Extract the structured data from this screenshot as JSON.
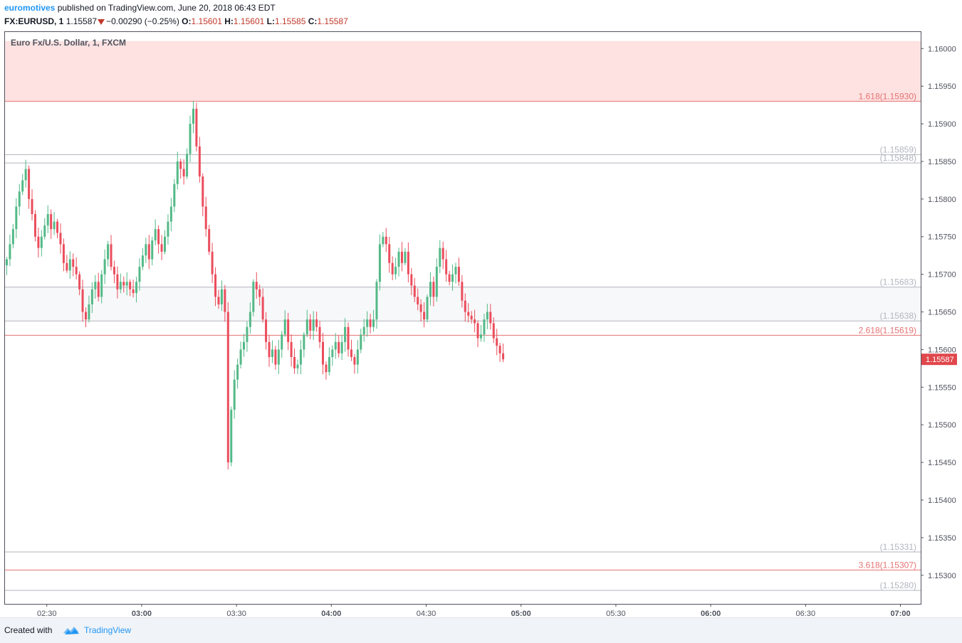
{
  "header": {
    "author": "euromotives",
    "published_text": "published on TradingView.com, June 20, 2018 06:43 EDT",
    "symbol": "FX:EURUSD, 1",
    "last": "1.15587",
    "change": "−0.00290 (−0.25%)",
    "o_label": "O:",
    "o_value": "1.15601",
    "h_label": "H:",
    "h_value": "1.15601",
    "l_label": "L:",
    "l_value": "1.15585",
    "c_label": "C:",
    "c_value": "1.15587"
  },
  "footer": {
    "created_with": "Created with",
    "brand": "TradingView"
  },
  "colors": {
    "up": "#53b987",
    "down": "#eb4d5c",
    "fib_red": "#e57373",
    "fib_gray": "#b2b5be",
    "zone_red": "#fde2e1",
    "zone_gray": "#f7f8f9",
    "axis": "#50535e",
    "last_price_bg": "#e0474c"
  },
  "chart_data": {
    "type": "candlestick",
    "legend_text": "Euro Fx/U.S. Dollar, 1, FXCM",
    "ylim": [
      1.15262,
      1.16022
    ],
    "y_ticks": [
      "1.16000",
      "1.15950",
      "1.15900",
      "1.15850",
      "1.15800",
      "1.15750",
      "1.15700",
      "1.15650",
      "1.15600",
      "1.15550",
      "1.15500",
      "1.15450",
      "1.15400",
      "1.15350",
      "1.15300"
    ],
    "x_ticks": [
      {
        "label": "02:30",
        "minute": 150,
        "bold": false
      },
      {
        "label": "03:00",
        "minute": 180,
        "bold": true
      },
      {
        "label": "03:30",
        "minute": 210,
        "bold": false
      },
      {
        "label": "04:00",
        "minute": 240,
        "bold": true
      },
      {
        "label": "04:30",
        "minute": 270,
        "bold": false
      },
      {
        "label": "05:00",
        "minute": 300,
        "bold": true
      },
      {
        "label": "05:30",
        "minute": 330,
        "bold": false
      },
      {
        "label": "06:00",
        "minute": 360,
        "bold": true
      },
      {
        "label": "06:30",
        "minute": 390,
        "bold": false
      },
      {
        "label": "07:00",
        "minute": 420,
        "bold": true
      }
    ],
    "start_minute": 137,
    "last_price": "1.15587",
    "zones": [
      {
        "from": 1.1593,
        "to": 1.1601,
        "color": "#fde2e1"
      },
      {
        "from": 1.15638,
        "to": 1.15683,
        "color": "#f7f8f9"
      }
    ],
    "levels": [
      {
        "price": 1.1593,
        "label": "1.618(1.15930)",
        "color": "#e57373"
      },
      {
        "price": 1.15859,
        "label": "(1.15859)",
        "color": "#b2b5be"
      },
      {
        "price": 1.15848,
        "label": "(1.15848)",
        "color": "#b2b5be"
      },
      {
        "price": 1.15683,
        "label": "(1.15683)",
        "color": "#b2b5be"
      },
      {
        "price": 1.15638,
        "label": "(1.15638)",
        "color": "#b2b5be"
      },
      {
        "price": 1.15619,
        "label": "2.618(1.15619)",
        "color": "#e57373"
      },
      {
        "price": 1.15331,
        "label": "(1.15331)",
        "color": "#b2b5be"
      },
      {
        "price": 1.15307,
        "label": "3.618(1.15307)",
        "color": "#e57373"
      },
      {
        "price": 1.1528,
        "label": "(1.15280)",
        "color": "#b2b5be"
      }
    ],
    "close_path": [
      1.1572,
      1.1574,
      1.1576,
      1.1579,
      1.1581,
      1.15825,
      1.1584,
      1.158,
      1.1578,
      1.1575,
      1.15735,
      1.1575,
      1.15765,
      1.1578,
      1.1576,
      1.1577,
      1.15755,
      1.1574,
      1.15715,
      1.15705,
      1.1572,
      1.1571,
      1.157,
      1.1568,
      1.1565,
      1.1564,
      1.1566,
      1.1568,
      1.1569,
      1.1567,
      1.157,
      1.1572,
      1.1574,
      1.1571,
      1.157,
      1.1568,
      1.1569,
      1.15685,
      1.1569,
      1.1568,
      1.15675,
      1.1569,
      1.1571,
      1.15725,
      1.1574,
      1.1572,
      1.15745,
      1.1576,
      1.1574,
      1.1573,
      1.1575,
      1.1577,
      1.1579,
      1.1582,
      1.1585,
      1.1584,
      1.1583,
      1.1586,
      1.159,
      1.1592,
      1.1587,
      1.1583,
      1.1579,
      1.1576,
      1.1573,
      1.157,
      1.1567,
      1.1566,
      1.1568,
      1.1565,
      1.1545,
      1.1552,
      1.1556,
      1.1558,
      1.156,
      1.1561,
      1.1563,
      1.1565,
      1.1569,
      1.1568,
      1.1567,
      1.1564,
      1.1561,
      1.1559,
      1.156,
      1.1558,
      1.156,
      1.1562,
      1.1564,
      1.1561,
      1.1559,
      1.15575,
      1.1558,
      1.156,
      1.1562,
      1.1564,
      1.15625,
      1.1564,
      1.1563,
      1.1561,
      1.1558,
      1.1557,
      1.1559,
      1.156,
      1.1561,
      1.15595,
      1.1561,
      1.1563,
      1.156,
      1.1559,
      1.1558,
      1.156,
      1.1562,
      1.1563,
      1.1564,
      1.1563,
      1.1564,
      1.1569,
      1.1574,
      1.1575,
      1.1574,
      1.15715,
      1.157,
      1.1571,
      1.1573,
      1.15715,
      1.1573,
      1.157,
      1.15685,
      1.1567,
      1.1566,
      1.1565,
      1.1564,
      1.1567,
      1.1569,
      1.1567,
      1.1571,
      1.15735,
      1.1572,
      1.157,
      1.1569,
      1.157,
      1.1571,
      1.1569,
      1.15665,
      1.1565,
      1.15645,
      1.1564,
      1.15635,
      1.15615,
      1.1562,
      1.1564,
      1.1565,
      1.15635,
      1.15615,
      1.15605,
      1.15595,
      1.15587
    ]
  }
}
